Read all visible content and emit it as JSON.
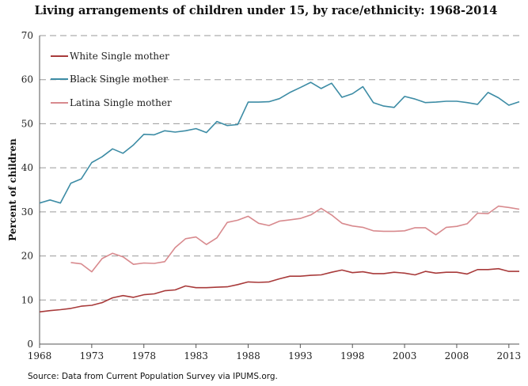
{
  "chart_data": {
    "type": "line",
    "title": "Living arrangements of children under 15, by race/ethnicity: 1968-2014",
    "xlabel": "",
    "ylabel": "Percent of children",
    "source": "Source: Data from Current Population Survey via IPUMS.org.",
    "xlim": [
      1968,
      2014
    ],
    "ylim": [
      0,
      70
    ],
    "xticks": [
      "1968",
      "1973",
      "1978",
      "1983",
      "1988",
      "1993",
      "1998",
      "2003",
      "2008",
      "2013"
    ],
    "yticks": [
      "0",
      "10",
      "20",
      "30",
      "40",
      "50",
      "60",
      "70"
    ],
    "grid": "horizontal dashed",
    "legend_position": "top-left",
    "series": [
      {
        "name": "White Single mother",
        "color": "#a83a3a",
        "x": [
          1968,
          1969,
          1970,
          1971,
          1972,
          1973,
          1974,
          1975,
          1976,
          1977,
          1978,
          1979,
          1980,
          1981,
          1982,
          1983,
          1984,
          1985,
          1986,
          1987,
          1988,
          1989,
          1990,
          1991,
          1992,
          1993,
          1994,
          1995,
          1996,
          1997,
          1998,
          1999,
          2000,
          2001,
          2002,
          2003,
          2004,
          2005,
          2006,
          2007,
          2008,
          2009,
          2010,
          2011,
          2012,
          2013,
          2014
        ],
        "values": [
          7.3,
          7.6,
          7.8,
          8.1,
          8.6,
          8.8,
          9.4,
          10.5,
          11.0,
          10.6,
          11.2,
          11.4,
          12.1,
          12.3,
          13.2,
          12.8,
          12.8,
          12.9,
          13.0,
          13.5,
          14.1,
          14.0,
          14.1,
          14.8,
          15.4,
          15.4,
          15.6,
          15.7,
          16.3,
          16.8,
          16.2,
          16.4,
          16.0,
          16.0,
          16.3,
          16.1,
          15.7,
          16.5,
          16.1,
          16.3,
          16.3,
          15.9,
          16.9,
          16.9,
          17.1,
          16.5,
          16.5
        ]
      },
      {
        "name": "Black Single mother",
        "color": "#3d8ca5",
        "x": [
          1968,
          1969,
          1970,
          1971,
          1972,
          1973,
          1974,
          1975,
          1976,
          1977,
          1978,
          1979,
          1980,
          1981,
          1982,
          1983,
          1984,
          1985,
          1986,
          1987,
          1988,
          1989,
          1990,
          1991,
          1992,
          1993,
          1994,
          1995,
          1996,
          1997,
          1998,
          1999,
          2000,
          2001,
          2002,
          2003,
          2004,
          2005,
          2006,
          2007,
          2008,
          2009,
          2010,
          2011,
          2012,
          2013,
          2014
        ],
        "values": [
          32.0,
          32.7,
          32.0,
          36.5,
          37.5,
          41.2,
          42.5,
          44.3,
          43.3,
          45.2,
          47.6,
          47.5,
          48.4,
          48.1,
          48.4,
          48.9,
          48.0,
          50.5,
          49.6,
          49.8,
          54.9,
          54.9,
          55.0,
          55.7,
          57.1,
          58.2,
          59.4,
          58.0,
          59.2,
          56.0,
          56.8,
          58.4,
          54.8,
          54.0,
          53.7,
          56.2,
          55.6,
          54.8,
          54.9,
          55.1,
          55.1,
          54.8,
          54.4,
          57.1,
          55.9,
          54.2,
          55.0
        ]
      },
      {
        "name": "Latina Single mother",
        "color": "#d88a8e",
        "x": [
          1971,
          1972,
          1973,
          1974,
          1975,
          1976,
          1977,
          1978,
          1979,
          1980,
          1981,
          1982,
          1983,
          1984,
          1985,
          1986,
          1987,
          1988,
          1989,
          1990,
          1991,
          1992,
          1993,
          1994,
          1995,
          1996,
          1997,
          1998,
          1999,
          2000,
          2001,
          2002,
          2003,
          2004,
          2005,
          2006,
          2007,
          2008,
          2009,
          2010,
          2011,
          2012,
          2013,
          2014
        ],
        "values": [
          18.5,
          18.2,
          16.4,
          19.4,
          20.6,
          19.8,
          18.1,
          18.4,
          18.3,
          18.7,
          21.9,
          23.9,
          24.3,
          22.6,
          24.1,
          27.6,
          28.1,
          29.0,
          27.4,
          26.9,
          27.9,
          28.2,
          28.5,
          29.3,
          30.8,
          29.3,
          27.4,
          26.8,
          26.5,
          25.7,
          25.6,
          25.6,
          25.7,
          26.4,
          26.4,
          24.8,
          26.5,
          26.7,
          27.3,
          29.7,
          29.6,
          31.3,
          31.0,
          30.6
        ]
      }
    ]
  }
}
